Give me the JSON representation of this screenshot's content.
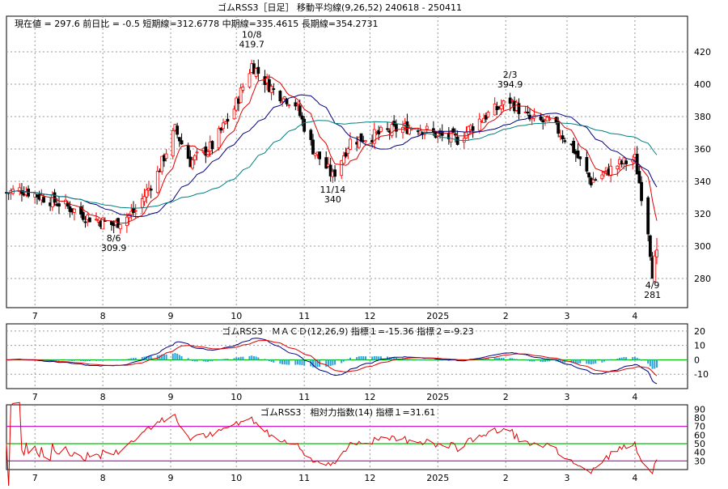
{
  "header": {
    "title": "ゴムRSS3［日足］ 移動平均線(9,26,52)  240618 - 250411",
    "stats": "現在値 = 297.6  前日比 = -0.5   短期線=312.6778   中期線=335.4615   長期線=354.2731"
  },
  "month_labels": [
    "7",
    "8",
    "9",
    "10",
    "11",
    "12",
    "2025",
    "2",
    "3",
    "4"
  ],
  "colors": {
    "candle_up": "#ff0000",
    "candle_down": "#000000",
    "ma_short": "#e00000",
    "ma_mid": "#000080",
    "ma_long": "#008080",
    "macd_line": "#000080",
    "signal_line": "#e00000",
    "histogram": "#2aa3d8",
    "rsi_line": "#e00000",
    "zero_line": "#00c000"
  },
  "chart_data": [
    {
      "type": "candlestick",
      "title": "ゴムRSS3［日足］ 移動平均線(9,26,52)  240618 - 250411",
      "ylim": [
        262,
        442
      ],
      "y_ticks": [
        280,
        300,
        320,
        340,
        360,
        380,
        400,
        420
      ],
      "current": 297.6,
      "change": -0.5,
      "ma": {
        "short": 312.6778,
        "mid": 335.4615,
        "long": 354.2731
      },
      "annotations": [
        {
          "date": "8/6",
          "value": 309.9
        },
        {
          "date": "10/8",
          "value": 419.7
        },
        {
          "date": "11/14",
          "value": 340
        },
        {
          "date": "2/3",
          "value": 394.9
        },
        {
          "date": "4/9",
          "value": 281
        }
      ],
      "price_path": [
        [
          "2024-06-18",
          333
        ],
        [
          "2024-06-25",
          335
        ],
        [
          "2024-07-05",
          330
        ],
        [
          "2024-07-15",
          325
        ],
        [
          "2024-07-25",
          318
        ],
        [
          "2024-08-06",
          313
        ],
        [
          "2024-08-16",
          322
        ],
        [
          "2024-08-26",
          345
        ],
        [
          "2024-09-03",
          372
        ],
        [
          "2024-09-10",
          352
        ],
        [
          "2024-09-20",
          362
        ],
        [
          "2024-09-30",
          385
        ],
        [
          "2024-10-08",
          412
        ],
        [
          "2024-10-18",
          396
        ],
        [
          "2024-10-28",
          388
        ],
        [
          "2024-11-05",
          360
        ],
        [
          "2024-11-14",
          343
        ],
        [
          "2024-11-22",
          365
        ],
        [
          "2024-12-02",
          368
        ],
        [
          "2024-12-12",
          372
        ],
        [
          "2024-12-22",
          374
        ],
        [
          "2025-01-02",
          368
        ],
        [
          "2025-01-10",
          366
        ],
        [
          "2025-01-20",
          378
        ],
        [
          "2025-02-03",
          390
        ],
        [
          "2025-02-12",
          378
        ],
        [
          "2025-02-22",
          376
        ],
        [
          "2025-03-03",
          362
        ],
        [
          "2025-03-12",
          340
        ],
        [
          "2025-03-24",
          350
        ],
        [
          "2025-04-01",
          354
        ],
        [
          "2025-04-07",
          310
        ],
        [
          "2025-04-09",
          284
        ],
        [
          "2025-04-11",
          297.6
        ]
      ]
    },
    {
      "type": "line",
      "title": "ゴムRSS3　ＭＡＣＤ(12,26,9) 指標１=-15.36  指標２=-9.23",
      "ylim": [
        -20,
        25
      ],
      "y_ticks": [
        -10,
        0,
        10,
        20
      ],
      "indicator1": -15.36,
      "indicator2": -9.23
    },
    {
      "type": "line",
      "title": "ゴムRSS3　相対力指数(14) 指標１=31.61",
      "ylim": [
        20,
        95
      ],
      "y_ticks": [
        30,
        40,
        50,
        60,
        70,
        80,
        90
      ],
      "guides": [
        30,
        50,
        70
      ],
      "indicator1": 31.61
    }
  ]
}
